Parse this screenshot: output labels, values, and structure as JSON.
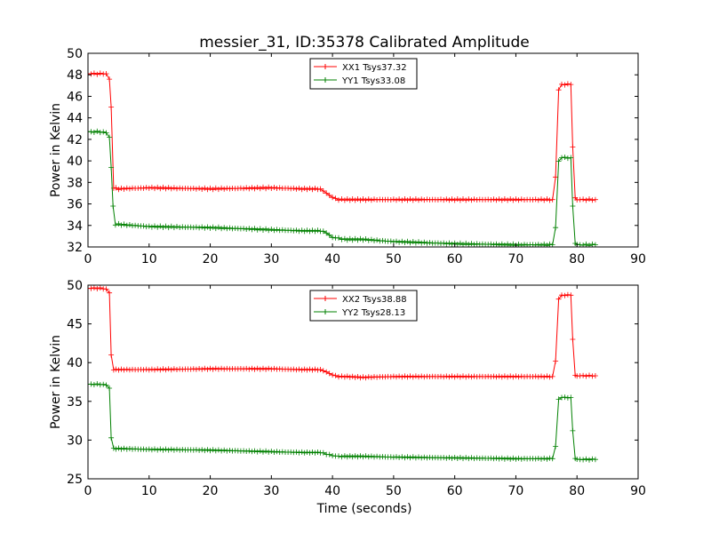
{
  "title": "messier_31, ID:35378 Calibrated Amplitude",
  "xlabel": "Time (seconds)",
  "colors": {
    "red": "#ff0000",
    "green": "#008000"
  },
  "chart_data": [
    {
      "type": "line",
      "ylabel": "Power in Kelvin",
      "xlim": [
        0,
        90
      ],
      "ylim": [
        32,
        50
      ],
      "xticks": [
        0,
        10,
        20,
        30,
        40,
        50,
        60,
        70,
        80,
        90
      ],
      "yticks": [
        32,
        34,
        36,
        38,
        40,
        42,
        44,
        46,
        48,
        50
      ],
      "legend": "top-center",
      "grid": false,
      "series": [
        {
          "name": "XX1 Tsys37.32",
          "color": "#ff0000",
          "x": [
            0,
            1,
            2,
            3,
            3.5,
            3.8,
            4.2,
            5,
            10,
            20,
            30,
            35,
            38,
            39,
            40,
            41,
            42,
            45,
            50,
            60,
            70,
            76,
            76.5,
            77,
            77.5,
            78,
            79,
            79.3,
            79.7,
            80,
            81,
            82,
            83
          ],
          "values": [
            48.1,
            48.1,
            48.1,
            48.1,
            47.6,
            45.0,
            37.5,
            37.4,
            37.5,
            37.4,
            37.5,
            37.4,
            37.4,
            37.0,
            36.6,
            36.4,
            36.4,
            36.4,
            36.4,
            36.4,
            36.4,
            36.4,
            38.5,
            46.6,
            47.1,
            47.1,
            47.1,
            41.3,
            36.6,
            36.4,
            36.4,
            36.4,
            36.4
          ]
        },
        {
          "name": "YY1 Tsys33.08",
          "color": "#008000",
          "x": [
            0,
            1,
            2,
            3,
            3.5,
            3.8,
            4.1,
            4.5,
            5,
            10,
            20,
            30,
            35,
            38,
            39,
            40,
            41,
            42,
            45,
            50,
            60,
            70,
            76,
            76.5,
            77,
            77.5,
            78,
            79,
            79.3,
            79.7,
            80,
            81,
            82,
            83
          ],
          "values": [
            42.7,
            42.7,
            42.7,
            42.6,
            42.2,
            39.4,
            35.8,
            34.1,
            34.1,
            33.9,
            33.8,
            33.6,
            33.5,
            33.5,
            33.3,
            32.9,
            32.8,
            32.7,
            32.7,
            32.5,
            32.3,
            32.2,
            32.2,
            33.8,
            40.0,
            40.3,
            40.3,
            40.3,
            35.8,
            32.3,
            32.2,
            32.2,
            32.2,
            32.2
          ]
        }
      ]
    },
    {
      "type": "line",
      "ylabel": "Power in Kelvin",
      "xlim": [
        0,
        90
      ],
      "ylim": [
        25,
        50
      ],
      "xticks": [
        0,
        10,
        20,
        30,
        40,
        50,
        60,
        70,
        80,
        90
      ],
      "yticks": [
        25,
        30,
        35,
        40,
        45,
        50
      ],
      "legend": "top-center",
      "grid": false,
      "series": [
        {
          "name": "XX2 Tsys38.88",
          "color": "#ff0000",
          "x": [
            0,
            1,
            2,
            3,
            3.5,
            3.8,
            4.2,
            5,
            10,
            20,
            30,
            35,
            38,
            39,
            40,
            41,
            42,
            45,
            50,
            60,
            70,
            76,
            76.5,
            77,
            77.5,
            78,
            79,
            79.3,
            79.7,
            80,
            81,
            82,
            83
          ],
          "values": [
            49.6,
            49.6,
            49.6,
            49.5,
            49.0,
            41.0,
            39.1,
            39.1,
            39.1,
            39.2,
            39.2,
            39.1,
            39.1,
            38.8,
            38.4,
            38.2,
            38.2,
            38.1,
            38.2,
            38.2,
            38.2,
            38.2,
            40.2,
            48.2,
            48.7,
            48.7,
            48.7,
            43.0,
            38.4,
            38.3,
            38.3,
            38.3,
            38.3
          ]
        },
        {
          "name": "YY2 Tsys28.13",
          "color": "#008000",
          "x": [
            0,
            1,
            2,
            3,
            3.5,
            3.8,
            4.2,
            5,
            10,
            20,
            30,
            35,
            38,
            39,
            40,
            41,
            42,
            45,
            50,
            60,
            70,
            76,
            76.5,
            77,
            77.5,
            78,
            79,
            79.3,
            79.7,
            80,
            81,
            82,
            83
          ],
          "values": [
            37.2,
            37.2,
            37.2,
            37.1,
            36.7,
            30.3,
            28.9,
            28.9,
            28.8,
            28.7,
            28.5,
            28.4,
            28.4,
            28.2,
            28.0,
            27.9,
            27.9,
            27.9,
            27.8,
            27.7,
            27.6,
            27.6,
            29.2,
            35.3,
            35.5,
            35.5,
            35.5,
            31.2,
            27.6,
            27.5,
            27.5,
            27.5,
            27.5
          ]
        }
      ]
    }
  ]
}
